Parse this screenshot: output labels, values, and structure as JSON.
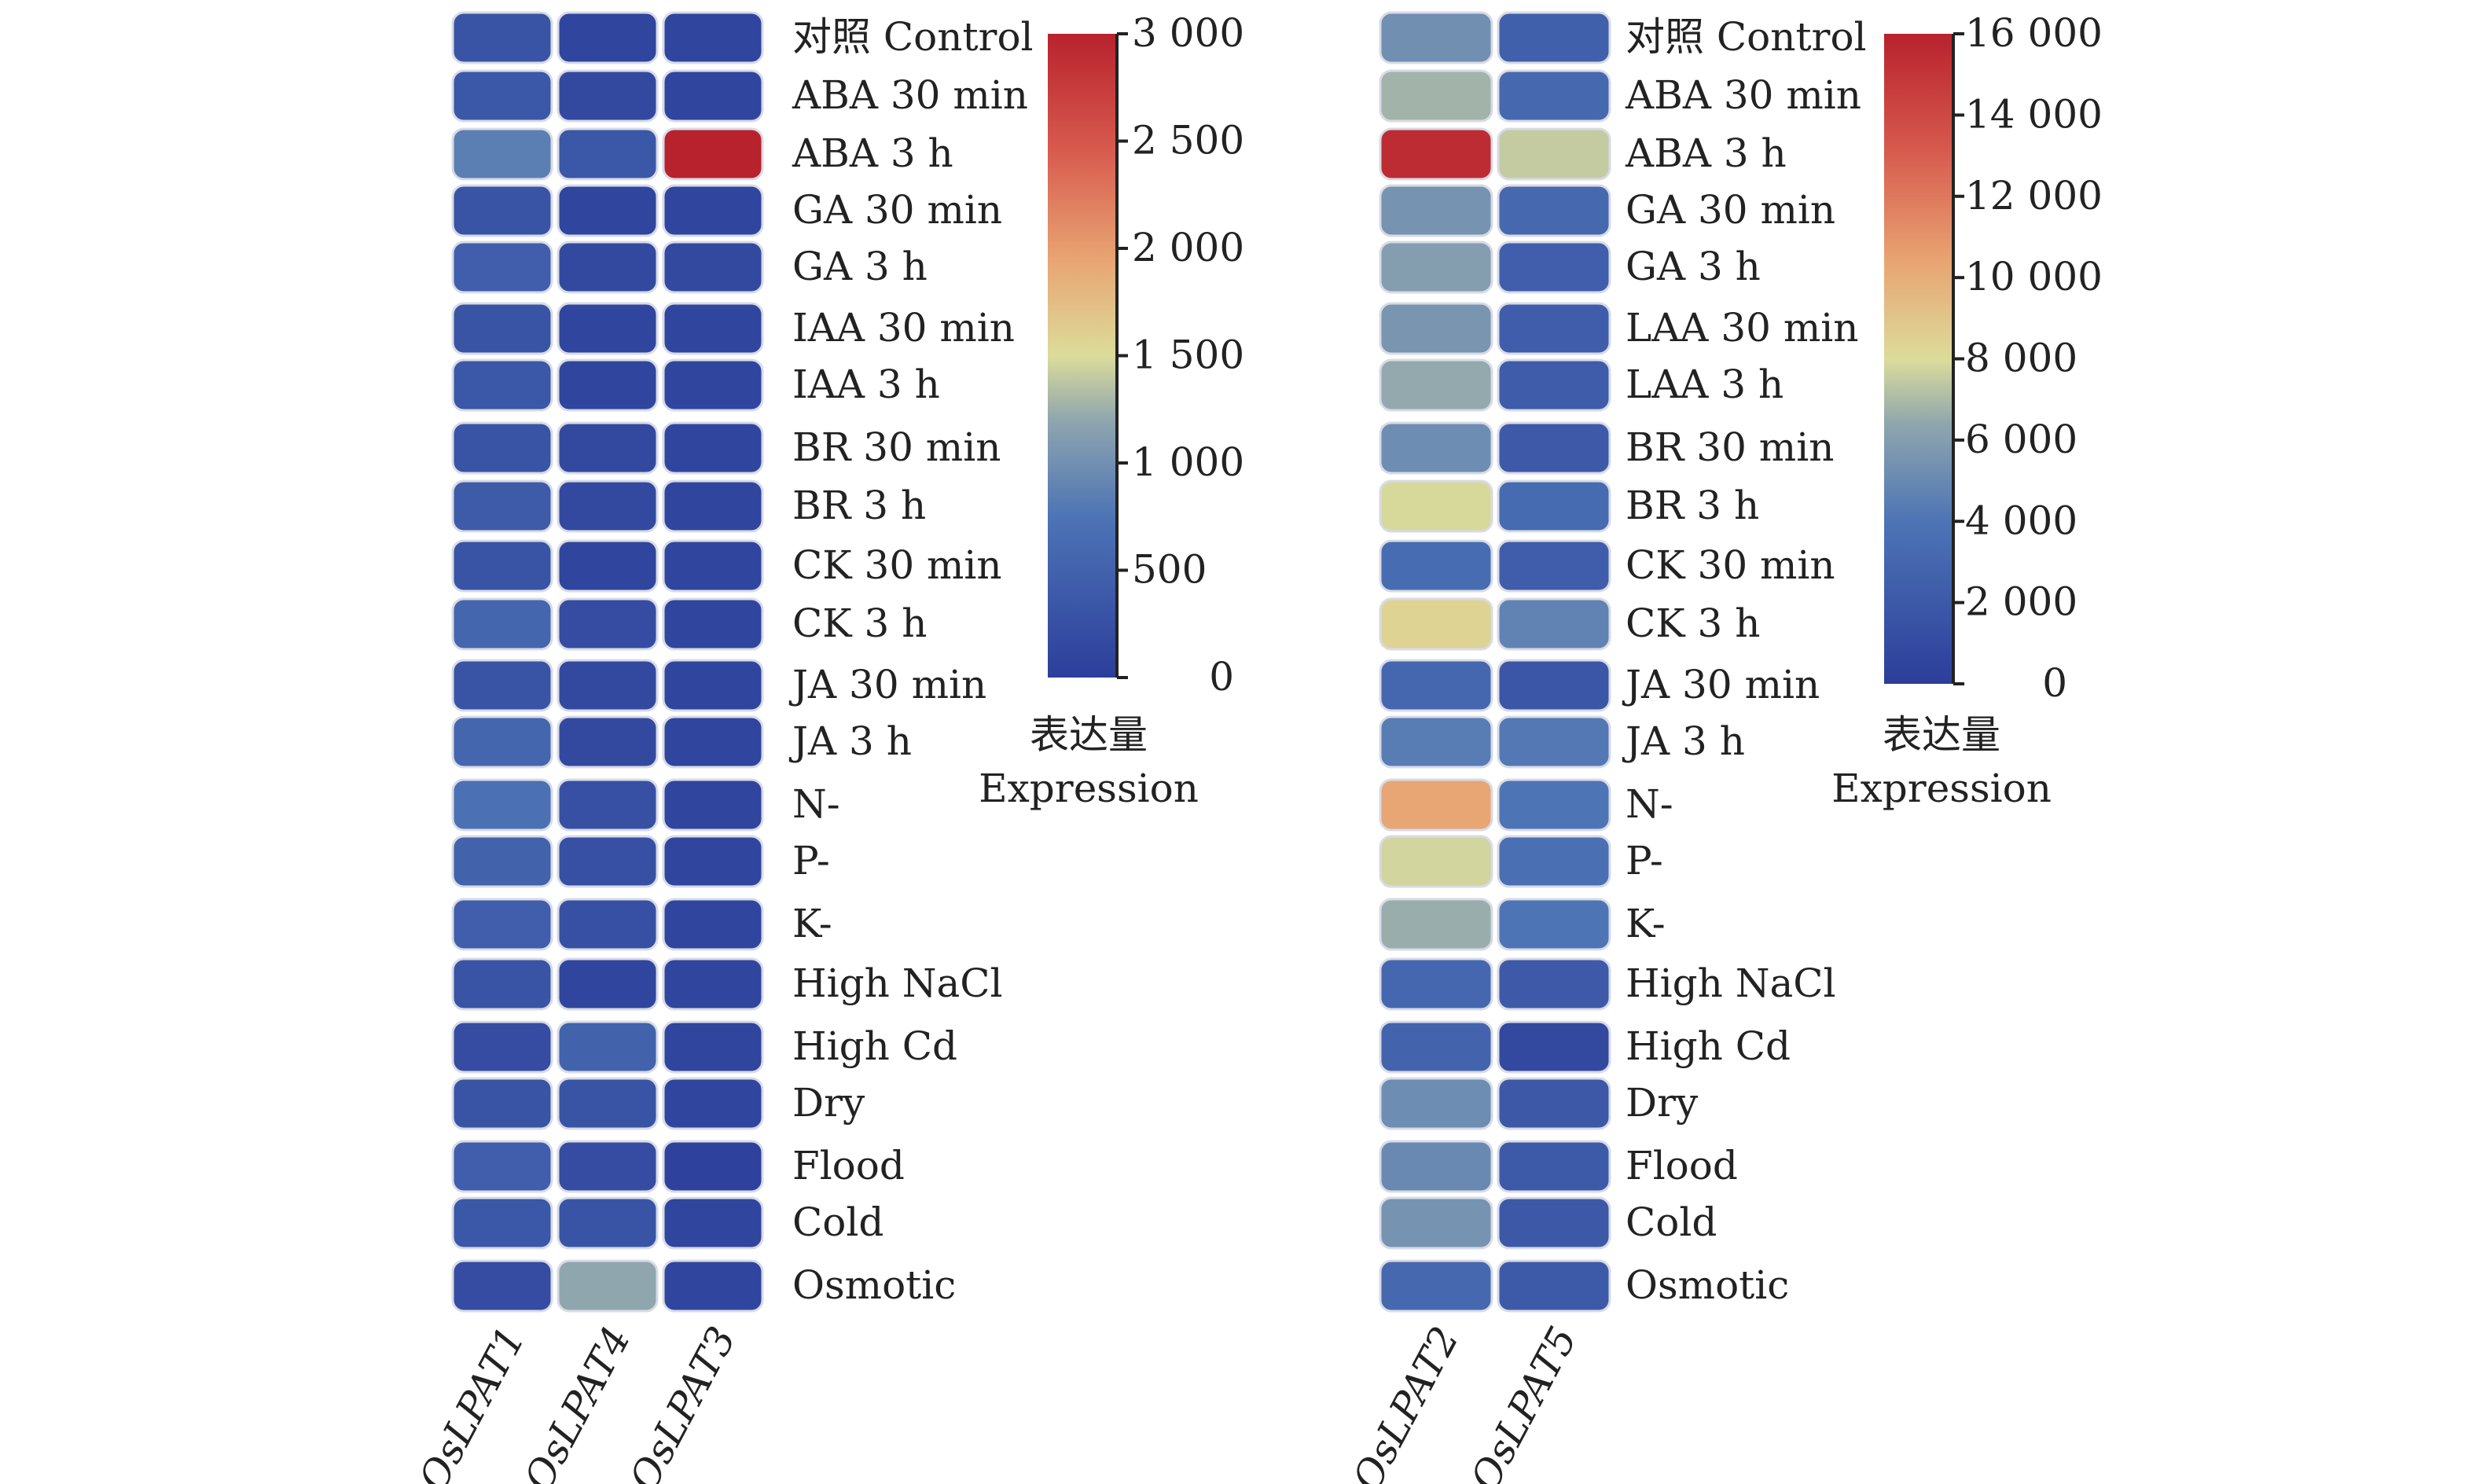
{
  "chart_data": [
    {
      "type": "heatmap",
      "title": "",
      "colorbar": {
        "min": 0,
        "max": 3000,
        "ticks": [
          0,
          500,
          1000,
          1500,
          2000,
          2500,
          3000
        ],
        "tick_labels": [
          "0",
          "500",
          "1 000",
          "1 500",
          "2 000",
          "2 500",
          "3 000"
        ],
        "label_cn": "表达量",
        "label_en": "Expression"
      },
      "columns": [
        "OsLPAT1",
        "OsLPAT4",
        "OsLPAT3"
      ],
      "rows": [
        "对照 Control",
        "ABA 30 min",
        "ABA 3 h",
        "GA 30 min",
        "GA 3 h",
        "IAA 30 min",
        "IAA 3 h",
        "BR 30 min",
        "BR 3 h",
        "CK 30 min",
        "CK 3 h",
        "JA 30 min",
        "JA 3 h",
        "N-",
        "P-",
        "K-",
        "High NaCl",
        "High Cd",
        "Dry",
        "Flood",
        "Cold",
        "Osmotic"
      ],
      "values": [
        [
          300,
          100,
          100
        ],
        [
          350,
          150,
          100
        ],
        [
          850,
          350,
          3000
        ],
        [
          300,
          100,
          100
        ],
        [
          450,
          150,
          150
        ],
        [
          300,
          100,
          100
        ],
        [
          350,
          100,
          100
        ],
        [
          300,
          150,
          100
        ],
        [
          400,
          150,
          100
        ],
        [
          300,
          100,
          100
        ],
        [
          550,
          200,
          100
        ],
        [
          300,
          150,
          100
        ],
        [
          550,
          150,
          100
        ],
        [
          700,
          250,
          100
        ],
        [
          500,
          250,
          100
        ],
        [
          450,
          250,
          100
        ],
        [
          300,
          100,
          100
        ],
        [
          200,
          500,
          100
        ],
        [
          300,
          300,
          100
        ],
        [
          450,
          200,
          50
        ],
        [
          350,
          300,
          100
        ],
        [
          200,
          1200,
          100
        ]
      ]
    },
    {
      "type": "heatmap",
      "title": "",
      "colorbar": {
        "min": 0,
        "max": 16000,
        "ticks": [
          0,
          2000,
          4000,
          6000,
          8000,
          10000,
          12000,
          14000,
          16000
        ],
        "tick_labels": [
          "0",
          "2 000",
          "4 000",
          "6 000",
          "8 000",
          "10 000",
          "12 000",
          "14 000",
          "16 000"
        ],
        "label_cn": "表达量",
        "label_en": "Expression"
      },
      "columns": [
        "OsLPAT2",
        "OsLPAT5"
      ],
      "rows": [
        "对照 Control",
        "ABA 30 min",
        "ABA 3 h",
        "GA 30 min",
        "GA 3 h",
        "LAA 30 min",
        "LAA 3 h",
        "BR 30 min",
        "BR 3 h",
        "CK 30 min",
        "CK 3 h",
        "JA 30 min",
        "JA 3 h",
        "N-",
        "P-",
        "K-",
        "High NaCl",
        "High Cd",
        "Dry",
        "Flood",
        "Cold",
        "Osmotic"
      ],
      "values": [
        [
          5300,
          2500
        ],
        [
          6800,
          3100
        ],
        [
          15500,
          7500
        ],
        [
          5500,
          3100
        ],
        [
          6000,
          2400
        ],
        [
          5600,
          2300
        ],
        [
          6500,
          2200
        ],
        [
          5200,
          2000
        ],
        [
          7900,
          3300
        ],
        [
          3400,
          2300
        ],
        [
          8400,
          4700
        ],
        [
          3000,
          1800
        ],
        [
          4400,
          4200
        ],
        [
          10300,
          4000
        ],
        [
          7800,
          3600
        ],
        [
          6600,
          4000
        ],
        [
          3000,
          2000
        ],
        [
          2800,
          800
        ],
        [
          5200,
          1900
        ],
        [
          5000,
          2100
        ],
        [
          5500,
          1900
        ],
        [
          3100,
          2100
        ]
      ]
    }
  ]
}
